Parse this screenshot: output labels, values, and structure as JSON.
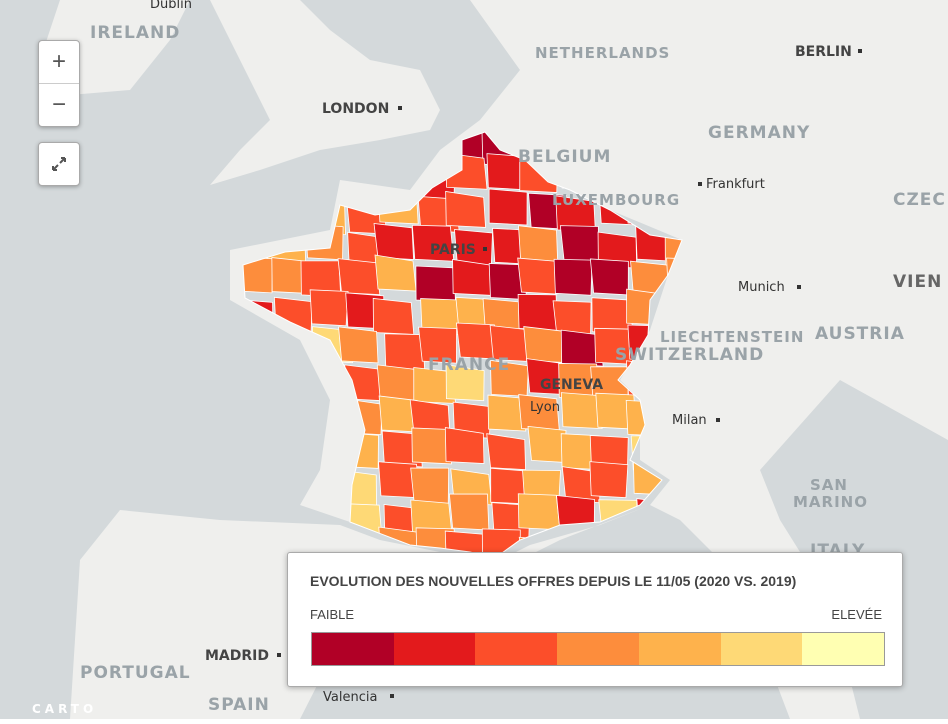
{
  "map": {
    "labels": {
      "dublin": "Dublin",
      "ireland": "IRELAND",
      "london": "LONDON",
      "netherlands": "NETHERLANDS",
      "berlin": "BERLIN",
      "belgium": "BELGIUM",
      "germany": "GERMANY",
      "luxembourg": "LUXEMBOURG",
      "frankfurt": "Frankfurt",
      "czech": "CZEC",
      "paris": "PARIS",
      "munich": "Munich",
      "vienna": "VIEN",
      "liechtenstein": "LIECHTENSTEIN",
      "austria": "AUSTRIA",
      "switzerland": "SWITZERLAND",
      "france": "FRANCE",
      "geneva": "GENEVA",
      "lyon": "Lyon",
      "milan": "Milan",
      "san": "SAN",
      "marino": "MARINO",
      "italy": "ITALY",
      "portugal": "PORTUGAL",
      "madrid": "MADRID",
      "spain": "SPAIN",
      "valencia": "Valencia"
    },
    "zoom_in": "+",
    "zoom_out": "−",
    "attribution": "CARTO",
    "legend": {
      "title": "EVOLUTION DES NOUVELLES OFFRES DEPUIS LE 11/05 (2020 VS. 2019)",
      "low": "FAIBLE",
      "high": "ELEVÉE",
      "colors": [
        "#b10026",
        "#e31a1c",
        "#fc4e2a",
        "#fd8d3c",
        "#feb24c",
        "#fed976",
        "#ffffb2"
      ]
    }
  }
}
